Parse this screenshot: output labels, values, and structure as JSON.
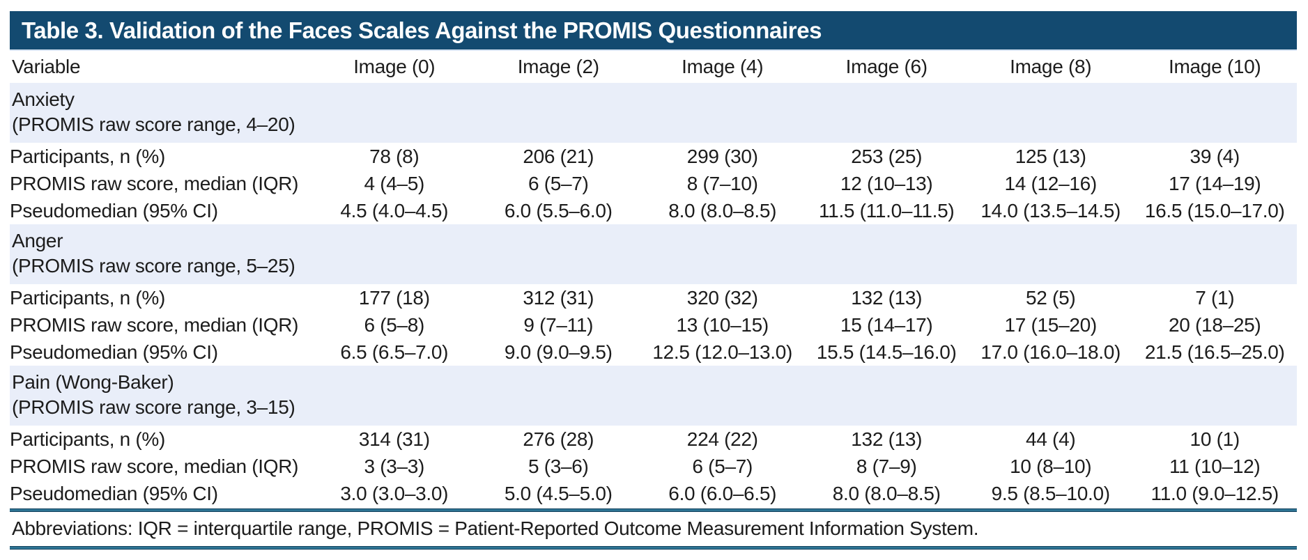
{
  "title": "Table 3. Validation of the Faces Scales Against the PROMIS Questionnaires",
  "columns": [
    "Variable",
    "Image (0)",
    "Image (2)",
    "Image (4)",
    "Image (6)",
    "Image (8)",
    "Image (10)"
  ],
  "sections": [
    {
      "name": "Anxiety",
      "range_note": "(PROMIS raw score range, 4–20)",
      "rows": [
        {
          "label": "Participants, n (%)",
          "values": [
            "78 (8)",
            "206 (21)",
            "299 (30)",
            "253 (25)",
            "125 (13)",
            "39 (4)"
          ]
        },
        {
          "label": "PROMIS raw score, median (IQR)",
          "values": [
            "4 (4–5)",
            "6 (5–7)",
            "8 (7–10)",
            "12 (10–13)",
            "14 (12–16)",
            "17 (14–19)"
          ]
        },
        {
          "label": "Pseudomedian (95% CI)",
          "values": [
            "4.5 (4.0–4.5)",
            "6.0 (5.5–6.0)",
            "8.0 (8.0–8.5)",
            "11.5 (11.0–11.5)",
            "14.0 (13.5–14.5)",
            "16.5 (15.0–17.0)"
          ]
        }
      ]
    },
    {
      "name": "Anger",
      "range_note": "(PROMIS raw score range, 5–25)",
      "rows": [
        {
          "label": "Participants, n (%)",
          "values": [
            "177 (18)",
            "312 (31)",
            "320 (32)",
            "132 (13)",
            "52 (5)",
            "7 (1)"
          ]
        },
        {
          "label": "PROMIS raw score, median (IQR)",
          "values": [
            "6 (5–8)",
            "9 (7–11)",
            "13 (10–15)",
            "15 (14–17)",
            "17 (15–20)",
            "20 (18–25)"
          ]
        },
        {
          "label": "Pseudomedian (95% CI)",
          "values": [
            "6.5 (6.5–7.0)",
            "9.0 (9.0–9.5)",
            "12.5 (12.0–13.0)",
            "15.5 (14.5–16.0)",
            "17.0 (16.0–18.0)",
            "21.5 (16.5–25.0)"
          ]
        }
      ]
    },
    {
      "name": "Pain (Wong-Baker)",
      "range_note": "(PROMIS raw score range, 3–15)",
      "rows": [
        {
          "label": "Participants, n (%)",
          "values": [
            "314 (31)",
            "276 (28)",
            "224 (22)",
            "132 (13)",
            "44 (4)",
            "10 (1)"
          ]
        },
        {
          "label": "PROMIS raw score, median (IQR)",
          "values": [
            "3 (3–3)",
            "5 (3–6)",
            "6 (5–7)",
            "8 (7–9)",
            "10 (8–10)",
            "11 (10–12)"
          ]
        },
        {
          "label": "Pseudomedian (95% CI)",
          "values": [
            "3.0 (3.0–3.0)",
            "5.0 (4.5–5.0)",
            "6.0 (6.0–6.5)",
            "8.0 (8.0–8.5)",
            "9.5 (8.5–10.0)",
            "11.0 (9.0–12.5)"
          ]
        }
      ]
    }
  ],
  "footnote": "Abbreviations: IQR = interquartile range, PROMIS = Patient-Reported Outcome Measurement Information System.",
  "colors": {
    "title_bar_bg": "#134a70",
    "title_text": "#ffffff",
    "section_band_bg": "#e9eef9",
    "rule_dark": "#10405c",
    "rule_mid": "#2e7494",
    "body_text": "#1c1c1c"
  }
}
